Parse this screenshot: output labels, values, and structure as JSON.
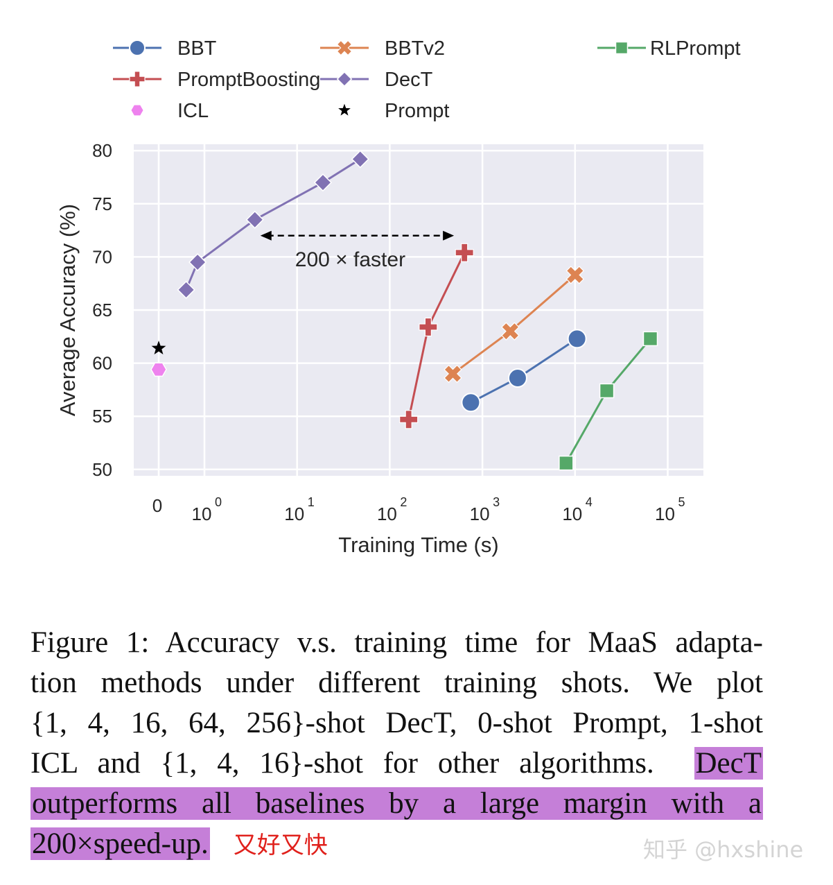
{
  "chart_data": {
    "type": "line",
    "xlabel": "Training Time (s)",
    "ylabel": "Average Accuracy (%)",
    "xscale": "symlog",
    "xticks": [
      {
        "value": 0,
        "base": "0",
        "exp": ""
      },
      {
        "value": 1,
        "base": "10",
        "exp": "0"
      },
      {
        "value": 10,
        "base": "10",
        "exp": "1"
      },
      {
        "value": 100,
        "base": "10",
        "exp": "2"
      },
      {
        "value": 1000,
        "base": "10",
        "exp": "3"
      },
      {
        "value": 10000,
        "base": "10",
        "exp": "4"
      },
      {
        "value": 100000,
        "base": "10",
        "exp": "5"
      }
    ],
    "yticks": [
      50,
      55,
      60,
      65,
      70,
      75,
      80
    ],
    "ylim": [
      49.4,
      80.6
    ],
    "grid": true,
    "legend": [
      {
        "name": "BBT",
        "color": "#4c72b0",
        "marker": "circle",
        "line": true
      },
      {
        "name": "PromptBoosting",
        "color": "#c44e52",
        "marker": "plus",
        "line": true
      },
      {
        "name": "ICL",
        "color": "#ee82ee",
        "marker": "hexagon",
        "line": false
      },
      {
        "name": "BBTv2",
        "color": "#dd8452",
        "marker": "x",
        "line": true
      },
      {
        "name": "DecT",
        "color": "#8172b3",
        "marker": "diamond",
        "line": true
      },
      {
        "name": "Prompt",
        "color": "#000000",
        "marker": "star",
        "line": false
      },
      {
        "name": "RLPrompt",
        "color": "#55a868",
        "marker": "square",
        "line": true
      }
    ],
    "series": [
      {
        "name": "BBT",
        "color": "#4c72b0",
        "marker": "circle",
        "x": [
          750,
          2400,
          10500
        ],
        "y": [
          56.3,
          58.6,
          62.3
        ]
      },
      {
        "name": "BBTv2",
        "color": "#dd8452",
        "marker": "x",
        "x": [
          480,
          2000,
          10000
        ],
        "y": [
          59.0,
          63.0,
          68.3
        ]
      },
      {
        "name": "RLPrompt",
        "color": "#55a868",
        "marker": "square",
        "x": [
          8000,
          22000,
          65000
        ],
        "y": [
          50.6,
          57.4,
          62.3
        ]
      },
      {
        "name": "PromptBoosting",
        "color": "#c44e52",
        "marker": "plus",
        "x": [
          160,
          260,
          640
        ],
        "y": [
          54.7,
          63.4,
          70.4
        ]
      },
      {
        "name": "DecT",
        "color": "#8172b3",
        "marker": "diamond",
        "x": [
          0.6,
          0.85,
          3.5,
          19,
          48
        ],
        "y": [
          66.9,
          69.5,
          73.5,
          77.0,
          79.2
        ]
      },
      {
        "name": "ICL",
        "color": "#ee82ee",
        "marker": "hexagon",
        "x": [
          0
        ],
        "y": [
          59.4
        ]
      },
      {
        "name": "Prompt",
        "color": "#000000",
        "marker": "star",
        "x": [
          0
        ],
        "y": [
          61.4
        ]
      }
    ],
    "annotation": {
      "text": "200 × faster",
      "x_start": 3.5,
      "x_end": 520,
      "y": 72.0
    }
  },
  "caption": {
    "line1": "Figure 1: Accuracy v.s. training time for MaaS adapta-",
    "line2": "tion methods under different training shots.  We plot",
    "line3": "{1, 4, 16, 64, 256}-shot DecT, 0-shot Prompt, 1-shot",
    "line4a": "ICL and {1, 4, 16}-shot for other algorithms.",
    "line4b": "DecT",
    "line5": "outperforms all baselines by a large margin with a",
    "line6": "200×speed-up.",
    "note": "又好又快"
  },
  "watermark": "知乎 @hxshine"
}
